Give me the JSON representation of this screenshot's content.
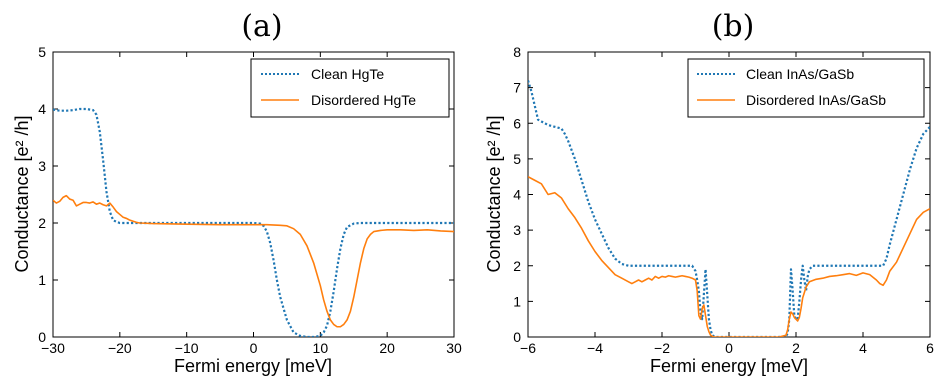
{
  "colors": {
    "clean": "#1f77b4",
    "disordered": "#ff7f0e",
    "axes": "#000000"
  },
  "chart_data": [
    {
      "type": "line",
      "panel_label": "(a)",
      "xlabel": "Fermi energy [meV]",
      "ylabel": "Conductance [e² /h]",
      "xlim": [
        -30,
        30
      ],
      "ylim": [
        0,
        5
      ],
      "xticks": [
        -30,
        -20,
        -10,
        0,
        10,
        20,
        30
      ],
      "yticks": [
        0,
        1,
        2,
        3,
        4,
        5
      ],
      "grid": false,
      "legend_position": "top-right",
      "series": [
        {
          "name": "Clean HgTe",
          "style": "dotted",
          "x": [
            -30,
            -29,
            -28,
            -27,
            -26,
            -25,
            -24,
            -23.5,
            -23,
            -22.5,
            -22,
            -21.5,
            -21,
            -20.5,
            -20,
            -19,
            -18,
            -15,
            -10,
            -5,
            0,
            1,
            1.5,
            2,
            2.5,
            3,
            3.5,
            4,
            5,
            6,
            7,
            8,
            9,
            10,
            10.5,
            11,
            11.5,
            12,
            12.5,
            13,
            13.5,
            14,
            15,
            16,
            18,
            20,
            25,
            30
          ],
          "y": [
            3.99,
            3.97,
            3.97,
            3.98,
            4.0,
            4.0,
            3.98,
            3.9,
            3.6,
            3.1,
            2.55,
            2.2,
            2.05,
            2.02,
            2.0,
            2.0,
            2.0,
            2.0,
            2.0,
            2.0,
            2.0,
            1.99,
            1.95,
            1.85,
            1.65,
            1.35,
            1.0,
            0.7,
            0.3,
            0.08,
            0.02,
            0.0,
            0.0,
            0.02,
            0.08,
            0.2,
            0.45,
            0.8,
            1.2,
            1.55,
            1.8,
            1.93,
            1.99,
            2.0,
            2.0,
            2.0,
            2.0,
            2.0
          ]
        },
        {
          "name": "Disordered HgTe",
          "style": "solid",
          "x": [
            -30,
            -29.5,
            -29,
            -28.5,
            -28,
            -27.5,
            -27,
            -26.5,
            -26,
            -25.5,
            -25,
            -24.5,
            -24,
            -23.5,
            -23,
            -22.5,
            -22,
            -21.5,
            -21,
            -20.5,
            -20,
            -19.5,
            -19,
            -18.5,
            -18,
            -17.5,
            -17,
            -15,
            -10,
            -5,
            0,
            2,
            4,
            5,
            6,
            7,
            8,
            9,
            10,
            10.5,
            11,
            11.5,
            12,
            12.5,
            13,
            13.5,
            14,
            14.5,
            15,
            15.5,
            16,
            16.5,
            17,
            17.5,
            18,
            19,
            20,
            22,
            24,
            26,
            28,
            30
          ],
          "y": [
            2.4,
            2.35,
            2.38,
            2.45,
            2.48,
            2.42,
            2.4,
            2.3,
            2.33,
            2.36,
            2.36,
            2.35,
            2.37,
            2.33,
            2.35,
            2.32,
            2.3,
            2.35,
            2.28,
            2.2,
            2.15,
            2.1,
            2.08,
            2.05,
            2.03,
            2.01,
            2.0,
            1.99,
            1.98,
            1.97,
            1.97,
            1.97,
            1.96,
            1.95,
            1.9,
            1.8,
            1.6,
            1.3,
            0.9,
            0.65,
            0.45,
            0.3,
            0.22,
            0.18,
            0.18,
            0.22,
            0.3,
            0.45,
            0.7,
            1.0,
            1.3,
            1.55,
            1.72,
            1.8,
            1.85,
            1.87,
            1.88,
            1.88,
            1.87,
            1.88,
            1.86,
            1.85
          ]
        }
      ]
    },
    {
      "type": "line",
      "panel_label": "(b)",
      "xlabel": "Fermi energy [meV]",
      "ylabel": "Conductance [e² /h]",
      "xlim": [
        -6,
        6
      ],
      "ylim": [
        0,
        8
      ],
      "xticks": [
        -6,
        -4,
        -2,
        0,
        2,
        4,
        6
      ],
      "yticks": [
        0,
        1,
        2,
        3,
        4,
        5,
        6,
        7,
        8
      ],
      "grid": false,
      "legend_position": "top-right",
      "series": [
        {
          "name": "Clean InAs/GaSb",
          "style": "dotted",
          "x": [
            -6,
            -5.9,
            -5.8,
            -5.7,
            -5.6,
            -5.5,
            -5.4,
            -5.2,
            -5.0,
            -4.9,
            -4.8,
            -4.6,
            -4.4,
            -4.2,
            -4.0,
            -3.8,
            -3.6,
            -3.4,
            -3.2,
            -3.0,
            -2.8,
            -2.0,
            -1.2,
            -1.1,
            -1.0,
            -0.95,
            -0.9,
            -0.85,
            -0.8,
            -0.75,
            -0.7,
            -0.65,
            -0.6,
            -0.55,
            -0.5,
            -0.45,
            -0.4,
            0.0,
            1.5,
            1.7,
            1.75,
            1.8,
            1.85,
            1.9,
            1.95,
            2.0,
            2.05,
            2.1,
            2.15,
            2.2,
            2.25,
            2.3,
            2.35,
            2.4,
            2.5,
            3.0,
            4.0,
            4.6,
            4.7,
            4.8,
            5.0,
            5.2,
            5.4,
            5.6,
            5.8,
            6.0
          ],
          "y": [
            7.2,
            6.9,
            6.5,
            6.1,
            6.05,
            6.0,
            5.95,
            5.9,
            5.85,
            5.7,
            5.5,
            5.0,
            4.4,
            3.8,
            3.3,
            2.9,
            2.5,
            2.2,
            2.05,
            2.0,
            2.0,
            2.0,
            2.0,
            2.0,
            1.85,
            1.6,
            1.3,
            0.7,
            0.5,
            1.2,
            1.9,
            1.2,
            0.5,
            0.2,
            0.05,
            0.02,
            0.0,
            0.0,
            0.0,
            0.02,
            0.1,
            0.5,
            1.9,
            1.3,
            0.6,
            0.5,
            0.5,
            1.0,
            1.6,
            2.0,
            1.6,
            1.3,
            1.7,
            1.9,
            2.0,
            2.0,
            2.0,
            2.0,
            2.2,
            2.6,
            3.3,
            4.0,
            4.7,
            5.3,
            5.7,
            5.9
          ]
        },
        {
          "name": "Disordered InAs/GaSb",
          "style": "solid",
          "x": [
            -6,
            -5.8,
            -5.6,
            -5.4,
            -5.2,
            -5.0,
            -4.8,
            -4.6,
            -4.4,
            -4.2,
            -4.0,
            -3.8,
            -3.6,
            -3.4,
            -3.2,
            -3.0,
            -2.9,
            -2.8,
            -2.7,
            -2.6,
            -2.5,
            -2.4,
            -2.3,
            -2.2,
            -2.1,
            -2.0,
            -1.9,
            -1.8,
            -1.7,
            -1.6,
            -1.5,
            -1.4,
            -1.3,
            -1.2,
            -1.1,
            -1.0,
            -0.95,
            -0.9,
            -0.85,
            -0.8,
            -0.75,
            -0.7,
            -0.65,
            -0.6,
            -0.55,
            -0.5,
            -0.45,
            -0.4,
            -0.3,
            0.0,
            1.0,
            1.5,
            1.7,
            1.75,
            1.8,
            1.85,
            1.9,
            1.95,
            2.0,
            2.05,
            2.1,
            2.15,
            2.2,
            2.25,
            2.3,
            2.4,
            2.6,
            2.8,
            3.0,
            3.2,
            3.4,
            3.6,
            3.8,
            4.0,
            4.2,
            4.4,
            4.5,
            4.6,
            4.7,
            4.8,
            5.0,
            5.2,
            5.4,
            5.6,
            5.8,
            6.0
          ],
          "y": [
            4.5,
            4.4,
            4.3,
            4.0,
            4.05,
            3.9,
            3.6,
            3.35,
            3.05,
            2.7,
            2.4,
            2.15,
            1.95,
            1.75,
            1.65,
            1.55,
            1.5,
            1.55,
            1.6,
            1.55,
            1.6,
            1.65,
            1.6,
            1.7,
            1.65,
            1.7,
            1.68,
            1.72,
            1.7,
            1.68,
            1.7,
            1.72,
            1.7,
            1.68,
            1.65,
            1.6,
            1.3,
            0.6,
            0.5,
            0.8,
            0.9,
            0.6,
            0.3,
            0.15,
            0.05,
            0.02,
            0.0,
            0.0,
            0.0,
            0.0,
            0.0,
            0.0,
            0.05,
            0.2,
            0.5,
            0.7,
            0.65,
            0.55,
            0.5,
            0.45,
            0.55,
            0.8,
            1.1,
            1.25,
            1.4,
            1.55,
            1.62,
            1.65,
            1.7,
            1.72,
            1.75,
            1.78,
            1.73,
            1.8,
            1.75,
            1.6,
            1.5,
            1.45,
            1.6,
            1.85,
            2.1,
            2.5,
            2.9,
            3.3,
            3.5,
            3.6
          ]
        }
      ]
    }
  ]
}
